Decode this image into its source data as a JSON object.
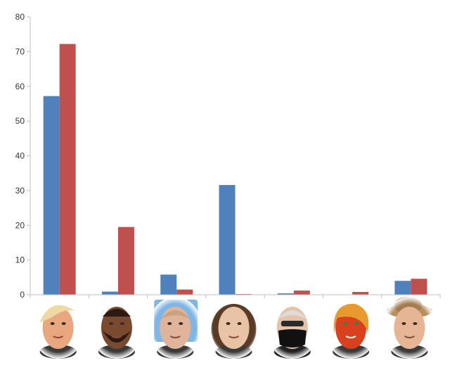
{
  "chart_data": {
    "type": "bar",
    "categories": [
      "face-1",
      "face-2",
      "face-3",
      "face-4",
      "face-5",
      "face-6",
      "face-7"
    ],
    "category_icons": [
      "blonde-man-face-icon",
      "bearded-man-face-icon",
      "man-face-blue-background-icon",
      "smiling-woman-face-icon",
      "masked-man-sunglasses-face-icon",
      "red-devil-painted-face-icon",
      "man-in-hat-face-icon"
    ],
    "series": [
      {
        "color": "#4f81bd",
        "values": [
          57.2,
          0.9,
          5.8,
          31.6,
          0.4,
          0.0,
          4.0
        ]
      },
      {
        "color": "#c0504d",
        "values": [
          72.2,
          19.5,
          1.5,
          0.2,
          1.2,
          0.8,
          4.6
        ]
      }
    ],
    "yticks": [
      "0",
      "10",
      "20",
      "30",
      "40",
      "50",
      "60",
      "70",
      "80"
    ],
    "ylim": [
      0,
      80
    ],
    "title": "",
    "xlabel": "",
    "ylabel": "",
    "grid": false,
    "legend": "none"
  }
}
